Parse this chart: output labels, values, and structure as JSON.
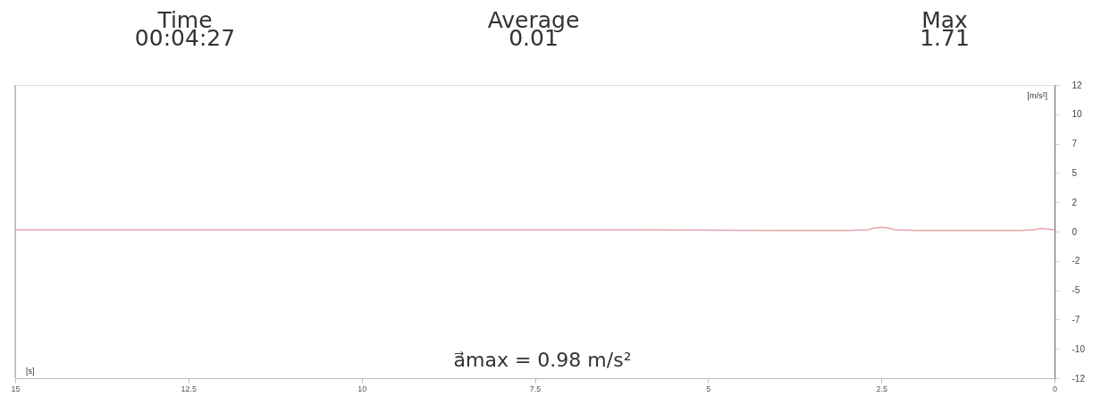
{
  "chart_data": {
    "type": "line",
    "xlabel": "[s]",
    "ylabel": "[m/s²]",
    "annotations": [
      "Time",
      "00:04:27",
      "Average",
      "0.01",
      "Max",
      "1.71",
      "a⃗max = 0.98 m/s²"
    ],
    "xlim": [
      15,
      0
    ],
    "xticks": [
      15,
      12.5,
      10,
      7.5,
      5,
      2.5,
      0
    ],
    "ylim": [
      -12,
      12
    ],
    "yticks": [
      {
        "value": 12,
        "label": "12"
      },
      {
        "value": 9.6,
        "label": "10"
      },
      {
        "value": 7.2,
        "label": "7"
      },
      {
        "value": 4.8,
        "label": "5"
      },
      {
        "value": 2.4,
        "label": "2"
      },
      {
        "value": 0,
        "label": "0"
      },
      {
        "value": -2.4,
        "label": "-2"
      },
      {
        "value": -4.8,
        "label": "-5"
      },
      {
        "value": -7.2,
        "label": "-7"
      },
      {
        "value": -9.6,
        "label": "-10"
      },
      {
        "value": -12,
        "label": "-12"
      }
    ],
    "grid": false,
    "legend": false,
    "series": [
      {
        "color": "#e8a4ac",
        "x": [
          15,
          12,
          9,
          6,
          4,
          3,
          2.7,
          2.6,
          2.5,
          2.4,
          2.3,
          2.0,
          1.5,
          1.0,
          0.5,
          0.3,
          0.2,
          0.1,
          0
        ],
        "values": [
          0.15,
          0.15,
          0.15,
          0.15,
          0.1,
          0.1,
          0.15,
          0.3,
          0.35,
          0.3,
          0.15,
          0.1,
          0.1,
          0.1,
          0.1,
          0.15,
          0.25,
          0.2,
          0.15
        ]
      }
    ]
  }
}
